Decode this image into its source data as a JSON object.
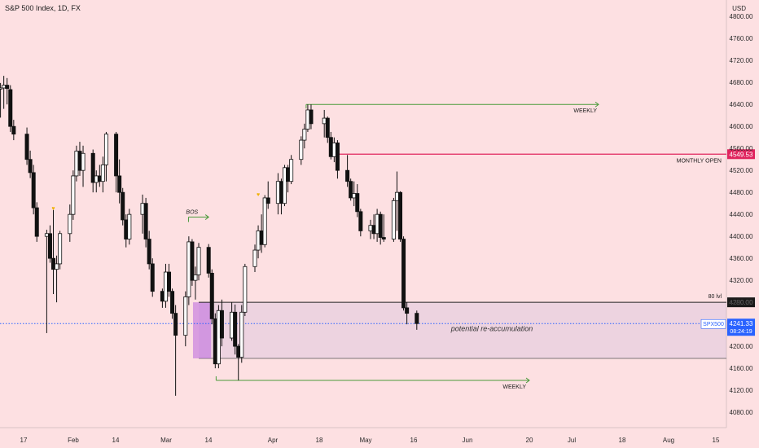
{
  "header": {
    "title": "S&P 500 Index, 1D, FX"
  },
  "axis": {
    "currency": "USD"
  },
  "chart_data": {
    "type": "candlestick",
    "title": "S&P 500 Index, 1D, FX",
    "ylabel": "USD",
    "ylim": [
      4052,
      4830
    ],
    "y_ticks": [
      4080,
      4120,
      4160,
      4200,
      4240,
      4280,
      4320,
      4360,
      4400,
      4440,
      4480,
      4520,
      4560,
      4600,
      4640,
      4680,
      4720,
      4760,
      4800
    ],
    "x_ticks": [
      "17",
      "Feb",
      "14",
      "Mar",
      "14",
      "Apr",
      "18",
      "May",
      "16",
      "Jun",
      "20",
      "Jul",
      "18",
      "Aug",
      "15"
    ],
    "candles": [
      {
        "date": "2022-01-03",
        "o": 4668,
        "h": 4719,
        "l": 4652,
        "c": 4690
      },
      {
        "date": "2022-01-04",
        "o": 4689,
        "h": 4732,
        "l": 4666,
        "c": 4726
      },
      {
        "date": "2022-01-05",
        "o": 4726,
        "h": 4744,
        "l": 4695,
        "c": 4738
      },
      {
        "date": "2022-01-06",
        "o": 4741,
        "h": 4749,
        "l": 4670,
        "c": 4700
      },
      {
        "date": "2022-01-07",
        "o": 4700,
        "h": 4710,
        "l": 4643,
        "c": 4668
      },
      {
        "date": "2022-01-10",
        "o": 4668,
        "h": 4679,
        "l": 4616,
        "c": 4670
      },
      {
        "date": "2022-01-11",
        "o": 4670,
        "h": 4692,
        "l": 4632,
        "c": 4675
      },
      {
        "date": "2022-01-12",
        "o": 4675,
        "h": 4688,
        "l": 4640,
        "c": 4669
      },
      {
        "date": "2022-01-13",
        "o": 4667,
        "h": 4675,
        "l": 4590,
        "c": 4600
      },
      {
        "date": "2022-01-14",
        "o": 4600,
        "h": 4612,
        "l": 4575,
        "c": 4586
      },
      {
        "date": "2022-01-18",
        "o": 4586,
        "h": 4598,
        "l": 4530,
        "c": 4540
      },
      {
        "date": "2022-01-19",
        "o": 4540,
        "h": 4556,
        "l": 4506,
        "c": 4516
      },
      {
        "date": "2022-01-20",
        "o": 4516,
        "h": 4530,
        "l": 4440,
        "c": 4452
      },
      {
        "date": "2022-01-21",
        "o": 4452,
        "h": 4462,
        "l": 4390,
        "c": 4400
      },
      {
        "date": "2022-01-24",
        "o": 4400,
        "h": 4412,
        "l": 4224,
        "c": 4405
      },
      {
        "date": "2022-01-25",
        "o": 4405,
        "h": 4420,
        "l": 4352,
        "c": 4360
      },
      {
        "date": "2022-01-26",
        "o": 4360,
        "h": 4448,
        "l": 4295,
        "c": 4340
      },
      {
        "date": "2022-01-27",
        "o": 4340,
        "h": 4365,
        "l": 4280,
        "c": 4350
      },
      {
        "date": "2022-01-28",
        "o": 4350,
        "h": 4410,
        "l": 4340,
        "c": 4405
      },
      {
        "date": "2022-01-31",
        "o": 4405,
        "h": 4458,
        "l": 4390,
        "c": 4440
      },
      {
        "date": "2022-02-01",
        "o": 4440,
        "h": 4520,
        "l": 4430,
        "c": 4510
      },
      {
        "date": "2022-02-02",
        "o": 4510,
        "h": 4565,
        "l": 4500,
        "c": 4555
      },
      {
        "date": "2022-02-03",
        "o": 4555,
        "h": 4572,
        "l": 4510,
        "c": 4520
      },
      {
        "date": "2022-02-04",
        "o": 4520,
        "h": 4565,
        "l": 4490,
        "c": 4551
      },
      {
        "date": "2022-02-07",
        "o": 4551,
        "h": 4558,
        "l": 4480,
        "c": 4498
      },
      {
        "date": "2022-02-08",
        "o": 4498,
        "h": 4520,
        "l": 4480,
        "c": 4510
      },
      {
        "date": "2022-02-09",
        "o": 4510,
        "h": 4530,
        "l": 4490,
        "c": 4500
      },
      {
        "date": "2022-02-10",
        "o": 4500,
        "h": 4545,
        "l": 4480,
        "c": 4530
      },
      {
        "date": "2022-02-11",
        "o": 4530,
        "h": 4590,
        "l": 4500,
        "c": 4586
      },
      {
        "date": "2022-02-14",
        "o": 4586,
        "h": 4590,
        "l": 4480,
        "c": 4510
      },
      {
        "date": "2022-02-15",
        "o": 4510,
        "h": 4540,
        "l": 4460,
        "c": 4480
      },
      {
        "date": "2022-02-16",
        "o": 4480,
        "h": 4488,
        "l": 4420,
        "c": 4430
      },
      {
        "date": "2022-02-17",
        "o": 4430,
        "h": 4440,
        "l": 4380,
        "c": 4395
      },
      {
        "date": "2022-02-18",
        "o": 4395,
        "h": 4450,
        "l": 4385,
        "c": 4440
      },
      {
        "date": "2022-02-22",
        "o": 4440,
        "h": 4476,
        "l": 4405,
        "c": 4460
      },
      {
        "date": "2022-02-23",
        "o": 4460,
        "h": 4470,
        "l": 4380,
        "c": 4395
      },
      {
        "date": "2022-02-24",
        "o": 4395,
        "h": 4410,
        "l": 4340,
        "c": 4350
      },
      {
        "date": "2022-02-25",
        "o": 4350,
        "h": 4360,
        "l": 4290,
        "c": 4300
      },
      {
        "date": "2022-02-28",
        "o": 4300,
        "h": 4305,
        "l": 4270,
        "c": 4282
      },
      {
        "date": "2022-03-01",
        "o": 4282,
        "h": 4350,
        "l": 4270,
        "c": 4335
      },
      {
        "date": "2022-03-02",
        "o": 4335,
        "h": 4350,
        "l": 4290,
        "c": 4300
      },
      {
        "date": "2022-03-03",
        "o": 4300,
        "h": 4305,
        "l": 4250,
        "c": 4260
      },
      {
        "date": "2022-03-04",
        "o": 4260,
        "h": 4275,
        "l": 4110,
        "c": 4220
      },
      {
        "date": "2022-03-07",
        "o": 4220,
        "h": 4300,
        "l": 4200,
        "c": 4290
      },
      {
        "date": "2022-03-08",
        "o": 4290,
        "h": 4400,
        "l": 4275,
        "c": 4390
      },
      {
        "date": "2022-03-09",
        "o": 4390,
        "h": 4395,
        "l": 4310,
        "c": 4320
      },
      {
        "date": "2022-03-10",
        "o": 4320,
        "h": 4345,
        "l": 4285,
        "c": 4330
      },
      {
        "date": "2022-03-11",
        "o": 4330,
        "h": 4388,
        "l": 4320,
        "c": 4380
      },
      {
        "date": "2022-03-14",
        "o": 4380,
        "h": 4386,
        "l": 4325,
        "c": 4333
      },
      {
        "date": "2022-03-15",
        "o": 4333,
        "h": 4340,
        "l": 4240,
        "c": 4250
      },
      {
        "date": "2022-03-16",
        "o": 4250,
        "h": 4260,
        "l": 4160,
        "c": 4168
      },
      {
        "date": "2022-03-17",
        "o": 4168,
        "h": 4275,
        "l": 4160,
        "c": 4265
      },
      {
        "date": "2022-03-18",
        "o": 4265,
        "h": 4285,
        "l": 4200,
        "c": 4215
      },
      {
        "date": "2022-03-21",
        "o": 4215,
        "h": 4280,
        "l": 4210,
        "c": 4262
      },
      {
        "date": "2022-03-22",
        "o": 4262,
        "h": 4276,
        "l": 4185,
        "c": 4200
      },
      {
        "date": "2022-03-23",
        "o": 4200,
        "h": 4204,
        "l": 4138,
        "c": 4180
      },
      {
        "date": "2022-03-24",
        "o": 4180,
        "h": 4275,
        "l": 4170,
        "c": 4262
      },
      {
        "date": "2022-03-25",
        "o": 4262,
        "h": 4350,
        "l": 4255,
        "c": 4345
      },
      {
        "date": "2022-03-28",
        "o": 4345,
        "h": 4385,
        "l": 4335,
        "c": 4375
      },
      {
        "date": "2022-03-29",
        "o": 4375,
        "h": 4420,
        "l": 4360,
        "c": 4410
      },
      {
        "date": "2022-03-30",
        "o": 4410,
        "h": 4440,
        "l": 4370,
        "c": 4385
      },
      {
        "date": "2022-03-31",
        "o": 4385,
        "h": 4475,
        "l": 4380,
        "c": 4470
      },
      {
        "date": "2022-04-01",
        "o": 4470,
        "h": 4500,
        "l": 4450,
        "c": 4460
      },
      {
        "date": "2022-04-04",
        "o": 4460,
        "h": 4515,
        "l": 4440,
        "c": 4500
      },
      {
        "date": "2022-04-05",
        "o": 4500,
        "h": 4505,
        "l": 4440,
        "c": 4460
      },
      {
        "date": "2022-04-06",
        "o": 4460,
        "h": 4530,
        "l": 4455,
        "c": 4525
      },
      {
        "date": "2022-04-07",
        "o": 4525,
        "h": 4530,
        "l": 4480,
        "c": 4500
      },
      {
        "date": "2022-04-08",
        "o": 4500,
        "h": 4548,
        "l": 4495,
        "c": 4540
      },
      {
        "date": "2022-04-11",
        "o": 4540,
        "h": 4582,
        "l": 4530,
        "c": 4575
      },
      {
        "date": "2022-04-12",
        "o": 4575,
        "h": 4605,
        "l": 4560,
        "c": 4595
      },
      {
        "date": "2022-04-13",
        "o": 4595,
        "h": 4640,
        "l": 4590,
        "c": 4630
      },
      {
        "date": "2022-04-14",
        "o": 4630,
        "h": 4640,
        "l": 4595,
        "c": 4605
      },
      {
        "date": "2022-04-18",
        "o": 4605,
        "h": 4630,
        "l": 4580,
        "c": 4615
      },
      {
        "date": "2022-04-19",
        "o": 4615,
        "h": 4618,
        "l": 4570,
        "c": 4580
      },
      {
        "date": "2022-04-20",
        "o": 4580,
        "h": 4590,
        "l": 4540,
        "c": 4545
      },
      {
        "date": "2022-04-21",
        "o": 4545,
        "h": 4580,
        "l": 4535,
        "c": 4570
      },
      {
        "date": "2022-04-22",
        "o": 4570,
        "h": 4575,
        "l": 4505,
        "c": 4520
      },
      {
        "date": "2022-04-25",
        "o": 4520,
        "h": 4548,
        "l": 4490,
        "c": 4500
      },
      {
        "date": "2022-04-26",
        "o": 4500,
        "h": 4505,
        "l": 4465,
        "c": 4470
      },
      {
        "date": "2022-04-27",
        "o": 4470,
        "h": 4500,
        "l": 4455,
        "c": 4478
      },
      {
        "date": "2022-04-28",
        "o": 4478,
        "h": 4495,
        "l": 4435,
        "c": 4445
      },
      {
        "date": "2022-04-29",
        "o": 4445,
        "h": 4450,
        "l": 4400,
        "c": 4410
      },
      {
        "date": "2022-05-02",
        "o": 4410,
        "h": 4430,
        "l": 4395,
        "c": 4420
      },
      {
        "date": "2022-05-03",
        "o": 4420,
        "h": 4440,
        "l": 4395,
        "c": 4405
      },
      {
        "date": "2022-05-04",
        "o": 4405,
        "h": 4450,
        "l": 4390,
        "c": 4440
      },
      {
        "date": "2022-05-05",
        "o": 4440,
        "h": 4445,
        "l": 4385,
        "c": 4398
      },
      {
        "date": "2022-05-06",
        "o": 4398,
        "h": 4440,
        "l": 4390,
        "c": 4395
      },
      {
        "date": "2022-05-09",
        "o": 4395,
        "h": 4470,
        "l": 4390,
        "c": 4465
      },
      {
        "date": "2022-05-10",
        "o": 4465,
        "h": 4518,
        "l": 4410,
        "c": 4480
      },
      {
        "date": "2022-05-11",
        "o": 4480,
        "h": 4482,
        "l": 4390,
        "c": 4395
      },
      {
        "date": "2022-05-12",
        "o": 4395,
        "h": 4400,
        "l": 4265,
        "c": 4270
      },
      {
        "date": "2022-05-13",
        "o": 4270,
        "h": 4280,
        "l": 4240,
        "c": 4260
      },
      {
        "date": "2022-05-16",
        "o": 4260,
        "h": 4265,
        "l": 4230,
        "c": 4241.33
      }
    ],
    "horizontal_levels": [
      {
        "name": "weekly-top",
        "price": 4640,
        "label": "WEEKLY",
        "color": "#4a9a3a"
      },
      {
        "name": "monthly-open",
        "price": 4549.53,
        "label": "MONTHLY OPEN",
        "axis_label": "4549.53",
        "color": "#e0245e"
      },
      {
        "name": "level-80",
        "price": 4280,
        "label": "80 lvl",
        "axis_label": "4280.00",
        "color": "#222222"
      },
      {
        "name": "weekly-bottom",
        "price": 4138,
        "label": "WEEKLY",
        "color": "#4a9a3a"
      }
    ],
    "zone": {
      "top": 4280,
      "bottom": 4178,
      "start": "2022-03-11",
      "label": "potential re-accumulation",
      "color": "#7b7bd9"
    },
    "highlight_zone": {
      "top": 4280,
      "bottom": 4178,
      "start": "2022-03-10",
      "end": "2022-03-14",
      "color": "#c070e0"
    },
    "bos": {
      "price": 4435,
      "start": "2022-03-01",
      "end": "2022-03-14",
      "label": "BOS",
      "color": "#4a9a3a"
    },
    "current_price": {
      "price": 4241.33,
      "symbol": "SPX500",
      "value": "4241.33",
      "countdown": "08:24:19",
      "color": "#2962ff"
    },
    "markers": [
      {
        "date": "2022-01-26",
        "price": 4448,
        "glyph": "♥",
        "color": "#f0b000"
      },
      {
        "date": "2022-03-29",
        "price": 4473,
        "glyph": "♥",
        "color": "#f0b000"
      }
    ]
  }
}
